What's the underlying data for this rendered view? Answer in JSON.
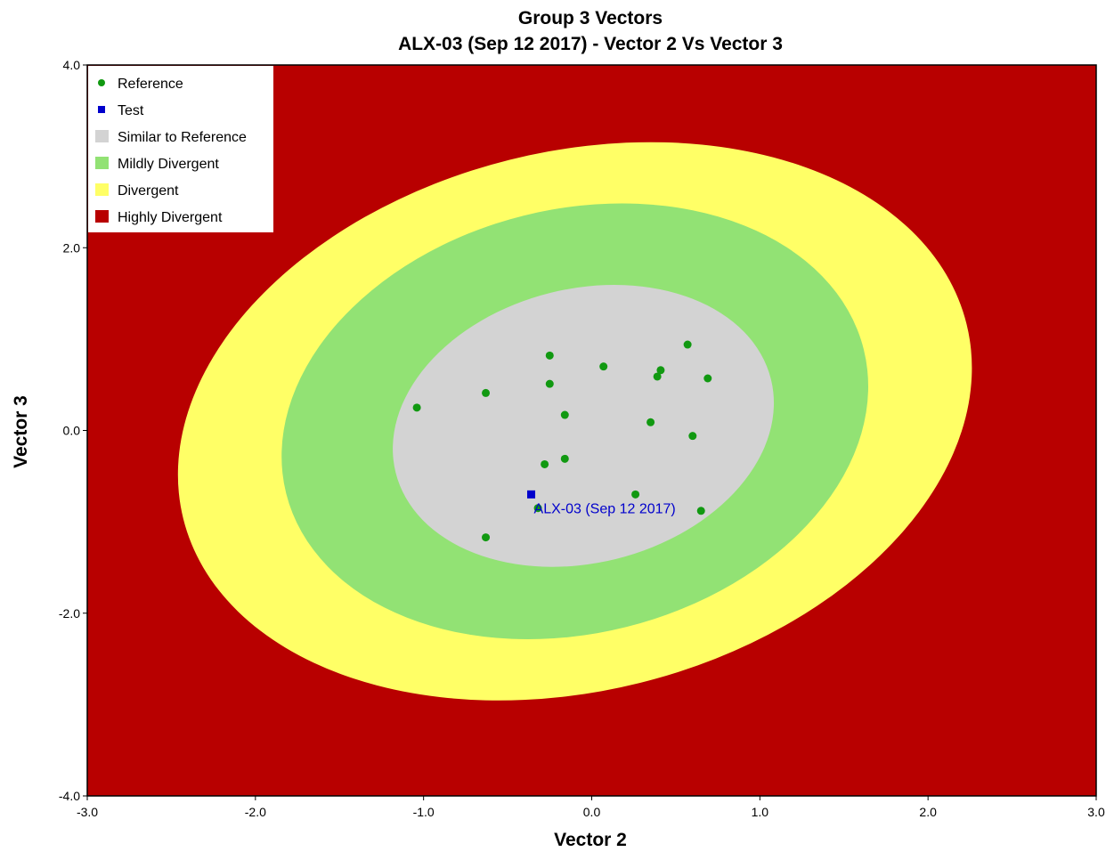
{
  "chart_data": {
    "type": "scatter",
    "title": "Group 3 Vectors",
    "subtitle": "ALX-03 (Sep 12 2017) - Vector 2 Vs Vector 3",
    "xlabel": "Vector 2",
    "ylabel": "Vector 3",
    "xlim": [
      -3.0,
      3.0
    ],
    "ylim": [
      -4.0,
      4.0
    ],
    "xticks": [
      "-3.0",
      "-2.0",
      "-1.0",
      "0.0",
      "1.0",
      "2.0",
      "3.0"
    ],
    "yticks": [
      "-4.0",
      "-2.0",
      "0.0",
      "2.0",
      "4.0"
    ],
    "grid": false,
    "legend_position": "top-left",
    "background_color": "#b80000",
    "zones": [
      {
        "name": "Divergent",
        "color": "#ffff66",
        "center": [
          -0.1,
          0.1
        ],
        "semi_axis_x": 2.4,
        "semi_axis_y": 2.95,
        "tilt": "rising"
      },
      {
        "name": "Mildly Divergent",
        "color": "#92e274",
        "center": [
          -0.1,
          0.1
        ],
        "semi_axis_x": 1.77,
        "semi_axis_y": 2.32,
        "tilt": "rising"
      },
      {
        "name": "Similar to Reference",
        "color": "#d3d3d3",
        "center": [
          -0.05,
          0.05
        ],
        "semi_axis_x": 1.15,
        "semi_axis_y": 1.5,
        "tilt": "rising"
      }
    ],
    "legend": [
      {
        "label": "Reference",
        "symbol": "dot",
        "color": "#119911"
      },
      {
        "label": "Test",
        "symbol": "square",
        "color": "#0000cc"
      },
      {
        "label": "Similar to Reference",
        "symbol": "swatch",
        "color": "#d3d3d3"
      },
      {
        "label": "Mildly Divergent",
        "symbol": "swatch",
        "color": "#92e274"
      },
      {
        "label": "Divergent",
        "symbol": "swatch",
        "color": "#ffff66"
      },
      {
        "label": "Highly Divergent",
        "symbol": "swatch",
        "color": "#b80000"
      }
    ],
    "series": [
      {
        "name": "Reference",
        "color": "#119911",
        "points": [
          [
            -1.04,
            0.25
          ],
          [
            -0.63,
            0.41
          ],
          [
            -0.25,
            0.82
          ],
          [
            -0.25,
            0.51
          ],
          [
            0.07,
            0.7
          ],
          [
            -0.16,
            0.17
          ],
          [
            -0.28,
            -0.37
          ],
          [
            -0.16,
            -0.31
          ],
          [
            0.35,
            0.09
          ],
          [
            0.39,
            0.59
          ],
          [
            0.41,
            0.66
          ],
          [
            0.57,
            0.94
          ],
          [
            0.69,
            0.57
          ],
          [
            0.6,
            -0.06
          ],
          [
            0.26,
            -0.7
          ],
          [
            -0.32,
            -0.85
          ],
          [
            0.65,
            -0.88
          ],
          [
            -0.63,
            -1.17
          ]
        ]
      },
      {
        "name": "Test",
        "color": "#0000cc",
        "points": [
          [
            -0.36,
            -0.7
          ]
        ],
        "label": "ALX-03 (Sep 12 2017)"
      }
    ]
  }
}
